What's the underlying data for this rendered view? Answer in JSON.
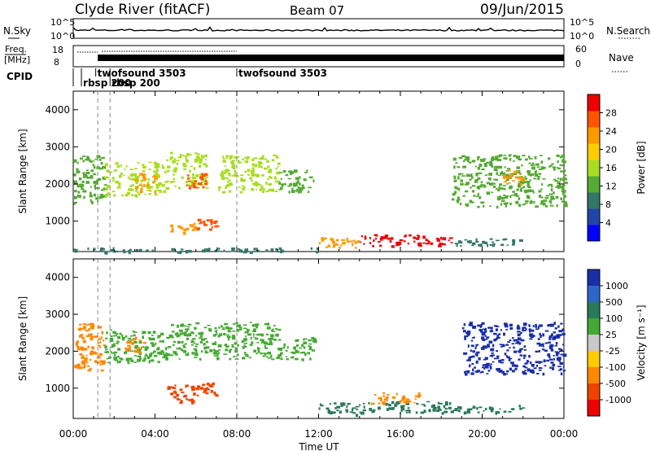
{
  "header": {
    "station": "Clyde River (fitACF)",
    "beam": "Beam 07",
    "date": "09/Jun/2015"
  },
  "panels": {
    "nsky_label": "N.Sky",
    "nsearch_label": "N.Search",
    "nsky_ticks": [
      "10^5",
      "10^0"
    ],
    "nsearch_ticks": [
      "10^5",
      "10^0"
    ],
    "freq_label_1": "Freq.",
    "freq_label_2": "[MHz]",
    "freq_ticks": [
      "18",
      "8"
    ],
    "nave_label": "Nave",
    "nave_ticks": [
      "60",
      "0"
    ],
    "cpid_label": "CPID",
    "cpid_programs": [
      {
        "name": "rbsp 200",
        "start_hour": 0.4,
        "row": 2
      },
      {
        "name": "twofsound 3503",
        "start_hour": 1.1,
        "row": 1
      },
      {
        "name": "rbsp 200",
        "start_hour": 1.8,
        "row": 2
      },
      {
        "name": "twofsound 3503",
        "start_hour": 8.0,
        "row": 1
      }
    ]
  },
  "colors": {
    "power_scale": [
      "#0000ff",
      "#2244aa",
      "#337766",
      "#55aa33",
      "#aadd22",
      "#ffcc00",
      "#ff9900",
      "#ff5500",
      "#ee0000"
    ],
    "velocity_scale": [
      "#1a2ea8",
      "#2e66c8",
      "#2a7a5a",
      "#44aa33",
      "#c8c8c8",
      "#ffcc00",
      "#ff8800",
      "#ee4400",
      "#ee0000"
    ]
  },
  "chart_data": [
    {
      "type": "heatmap",
      "name": "power",
      "xlabel": "Time UT",
      "ylabel": "Slant Range [km]",
      "xlim": [
        0,
        24
      ],
      "ylim": [
        180,
        4500
      ],
      "x_ticks": [
        "00:00",
        "04:00",
        "08:00",
        "12:00",
        "16:00",
        "20:00",
        "00:00"
      ],
      "y_ticks": [
        1000,
        2000,
        3000,
        4000
      ],
      "colorbar": {
        "label": "Power [dB]",
        "ticks": [
          4,
          8,
          12,
          16,
          20,
          24,
          28
        ],
        "range": [
          0,
          30
        ]
      },
      "echo_regions": [
        {
          "t": [
            0.0,
            1.5
          ],
          "r": [
            1500,
            2800
          ],
          "level": 12
        },
        {
          "t": [
            1.5,
            4.5
          ],
          "r": [
            1700,
            2600
          ],
          "level": 14
        },
        {
          "t": [
            3.0,
            4.0
          ],
          "r": [
            1800,
            2300
          ],
          "level": 22
        },
        {
          "t": [
            4.5,
            6.5
          ],
          "r": [
            1900,
            2900
          ],
          "level": 16
        },
        {
          "t": [
            5.5,
            6.5
          ],
          "r": [
            1900,
            2300
          ],
          "level": 26
        },
        {
          "t": [
            4.7,
            6.0
          ],
          "r": [
            700,
            1000
          ],
          "level": 22
        },
        {
          "t": [
            6.0,
            7.0
          ],
          "r": [
            800,
            1100
          ],
          "level": 26
        },
        {
          "t": [
            7.0,
            10.0
          ],
          "r": [
            1800,
            2800
          ],
          "level": 14
        },
        {
          "t": [
            10.0,
            11.8
          ],
          "r": [
            1800,
            2400
          ],
          "level": 12
        },
        {
          "t": [
            12.0,
            14.0
          ],
          "r": [
            300,
            600
          ],
          "level": 20
        },
        {
          "t": [
            14.0,
            18.5
          ],
          "r": [
            350,
            650
          ],
          "level": 28
        },
        {
          "t": [
            18.5,
            22.0
          ],
          "r": [
            350,
            550
          ],
          "level": 8
        },
        {
          "t": [
            18.5,
            24.0
          ],
          "r": [
            1400,
            2800
          ],
          "level": 12
        },
        {
          "t": [
            21.0,
            22.0
          ],
          "r": [
            2000,
            2400
          ],
          "level": 22
        },
        {
          "t": [
            0.0,
            12.0
          ],
          "r": [
            180,
            300
          ],
          "level": 8
        }
      ]
    },
    {
      "type": "heatmap",
      "name": "velocity",
      "xlabel": "Time UT",
      "ylabel": "Slant Range [km]",
      "xlim": [
        0,
        24
      ],
      "ylim": [
        180,
        4500
      ],
      "x_ticks": [
        "00:00",
        "04:00",
        "08:00",
        "12:00",
        "16:00",
        "20:00",
        "00:00"
      ],
      "y_ticks": [
        1000,
        2000,
        3000,
        4000
      ],
      "colorbar": {
        "label": "Velocity [m s⁻¹]",
        "ticks": [
          "1000",
          "500",
          "100",
          "25",
          "-25",
          "-100",
          "-500",
          "-1000"
        ]
      },
      "echo_regions": [
        {
          "t": [
            0.0,
            1.5
          ],
          "r": [
            1500,
            2800
          ],
          "level": "-100"
        },
        {
          "t": [
            1.5,
            4.5
          ],
          "r": [
            1700,
            2600
          ],
          "level": "25"
        },
        {
          "t": [
            2.5,
            3.5
          ],
          "r": [
            2000,
            2400
          ],
          "level": "-100"
        },
        {
          "t": [
            4.5,
            7.0
          ],
          "r": [
            1800,
            2800
          ],
          "level": "25"
        },
        {
          "t": [
            4.5,
            6.0
          ],
          "r": [
            600,
            1100
          ],
          "level": "-500"
        },
        {
          "t": [
            6.0,
            7.0
          ],
          "r": [
            800,
            1200
          ],
          "level": "-500"
        },
        {
          "t": [
            7.0,
            10.0
          ],
          "r": [
            1800,
            2800
          ],
          "level": "25"
        },
        {
          "t": [
            10.0,
            11.8
          ],
          "r": [
            1800,
            2400
          ],
          "level": "25"
        },
        {
          "t": [
            12.0,
            14.0
          ],
          "r": [
            300,
            650
          ],
          "level": "100"
        },
        {
          "t": [
            14.0,
            18.5
          ],
          "r": [
            350,
            650
          ],
          "level": "100"
        },
        {
          "t": [
            14.5,
            17.0
          ],
          "r": [
            600,
            900
          ],
          "level": "-100"
        },
        {
          "t": [
            18.5,
            22.0
          ],
          "r": [
            350,
            550
          ],
          "level": "100"
        },
        {
          "t": [
            19.0,
            24.0
          ],
          "r": [
            1400,
            2800
          ],
          "level": "1000"
        }
      ]
    }
  ]
}
